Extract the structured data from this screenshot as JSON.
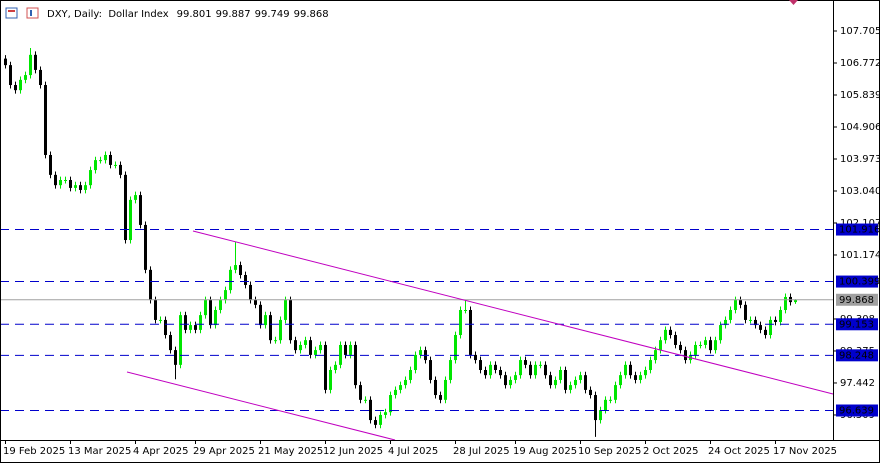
{
  "header": {
    "title": "DXY, Daily:  Dollar Index",
    "open": 99.801,
    "high": 99.887,
    "low": 99.749,
    "close": 99.868
  },
  "chart_data": {
    "type": "candlestick",
    "categories": [
      "19 Feb 2025",
      null,
      null,
      null,
      null,
      null,
      null,
      null,
      null,
      null,
      null,
      null,
      null,
      "13 Mar 2025",
      null,
      null,
      null,
      null,
      null,
      null,
      null,
      null,
      null,
      null,
      null,
      null,
      "4 Apr 2025",
      null,
      null,
      null,
      null,
      null,
      null,
      null,
      null,
      null,
      null,
      null,
      "29 Apr 2025",
      null,
      null,
      null,
      null,
      null,
      null,
      null,
      null,
      null,
      null,
      null,
      null,
      "21 May 2025",
      null,
      null,
      null,
      null,
      null,
      null,
      null,
      null,
      null,
      null,
      null,
      null,
      "12 Jun 2025",
      null,
      null,
      null,
      null,
      null,
      null,
      null,
      null,
      null,
      null,
      null,
      null,
      "4 Jul 2025",
      null,
      null,
      null,
      null,
      null,
      null,
      null,
      null,
      null,
      null,
      null,
      null,
      "28 Jul 2025",
      null,
      null,
      null,
      null,
      null,
      null,
      null,
      null,
      null,
      null,
      null,
      "19 Aug 2025",
      null,
      null,
      null,
      null,
      null,
      null,
      null,
      null,
      null,
      null,
      null,
      null,
      "10 Sep 2025",
      null,
      null,
      null,
      null,
      null,
      null,
      null,
      null,
      null,
      null,
      null,
      null,
      "2 Oct 2025",
      null,
      null,
      null,
      null,
      null,
      null,
      null,
      null,
      null,
      null,
      null,
      null,
      "24 Oct 2025",
      null,
      null,
      null,
      null,
      null,
      null,
      null,
      null,
      null,
      null,
      null,
      null,
      "17 Nov 2025",
      null,
      null,
      null,
      null
    ],
    "open": [
      106.9,
      106.71,
      106.13,
      105.98,
      106.28,
      106.42,
      107.01,
      106.57,
      106.13,
      104.09,
      103.51,
      103.21,
      103.36,
      103.36,
      103.13,
      103.21,
      103.07,
      103.21,
      103.65,
      103.94,
      103.94,
      104.09,
      103.8,
      103.8,
      103.51,
      101.61,
      102.78,
      102.92,
      102.05,
      100.74,
      99.86,
      99.28,
      99.28,
      98.84,
      98.4,
      97.97,
      99.42,
      98.99,
      99.13,
      98.99,
      99.42,
      99.86,
      99.13,
      99.57,
      99.86,
      100.15,
      100.74,
      100.88,
      100.59,
      100.3,
      99.86,
      99.72,
      99.13,
      99.42,
      98.69,
      98.69,
      99.28,
      99.86,
      98.69,
      98.4,
      98.55,
      98.69,
      98.26,
      98.4,
      98.55,
      97.24,
      97.82,
      97.97,
      98.55,
      98.26,
      98.55,
      97.38,
      96.95,
      96.95,
      96.36,
      96.22,
      96.51,
      96.59,
      97.09,
      97.24,
      97.38,
      97.53,
      97.82,
      98.26,
      98.4,
      98.11,
      97.53,
      97.09,
      96.95,
      97.53,
      98.11,
      98.84,
      99.57,
      99.57,
      98.26,
      98.11,
      97.82,
      97.67,
      97.97,
      97.82,
      97.67,
      97.38,
      97.53,
      97.67,
      98.11,
      97.97,
      97.67,
      97.97,
      97.97,
      97.67,
      97.38,
      97.53,
      97.82,
      97.24,
      97.38,
      97.53,
      97.67,
      97.24,
      97.09,
      96.36,
      96.65,
      96.95,
      96.95,
      97.38,
      97.67,
      97.97,
      97.67,
      97.53,
      97.67,
      97.82,
      98.11,
      98.4,
      98.69,
      98.99,
      98.84,
      98.55,
      98.4,
      98.11,
      98.26,
      98.55,
      98.55,
      98.69,
      98.4,
      98.69,
      99.13,
      99.28,
      99.57,
      99.86,
      99.72,
      99.28,
      99.28,
      99.13,
      98.99,
      98.84,
      99.28,
      99.22,
      99.57,
      99.95,
      99.801
    ],
    "high": [
      107.0,
      106.81,
      106.23,
      106.38,
      106.52,
      107.21,
      107.11,
      106.67,
      106.23,
      104.19,
      103.61,
      103.46,
      103.46,
      103.46,
      103.31,
      103.31,
      103.31,
      103.75,
      104.04,
      104.04,
      104.19,
      104.19,
      103.9,
      103.9,
      103.61,
      102.88,
      103.02,
      103.02,
      102.15,
      100.84,
      99.96,
      99.38,
      99.38,
      98.94,
      98.5,
      99.52,
      99.52,
      99.23,
      99.23,
      99.52,
      99.96,
      99.96,
      99.67,
      99.96,
      100.25,
      100.84,
      101.55,
      100.98,
      100.69,
      100.4,
      99.96,
      99.82,
      99.52,
      99.52,
      98.79,
      99.38,
      99.96,
      99.96,
      98.79,
      98.65,
      98.79,
      98.79,
      98.5,
      98.65,
      98.65,
      97.92,
      98.07,
      98.65,
      98.65,
      98.65,
      98.65,
      97.48,
      97.05,
      97.05,
      96.46,
      96.61,
      96.69,
      97.19,
      97.34,
      97.48,
      97.63,
      97.92,
      98.36,
      98.5,
      98.5,
      98.21,
      97.63,
      97.19,
      97.63,
      98.21,
      98.94,
      99.67,
      99.87,
      99.67,
      98.36,
      98.21,
      97.92,
      98.07,
      98.07,
      97.92,
      97.77,
      97.63,
      97.77,
      98.21,
      98.21,
      98.07,
      98.07,
      98.07,
      98.07,
      97.77,
      97.63,
      97.92,
      97.92,
      97.48,
      97.63,
      97.77,
      97.77,
      97.34,
      97.19,
      96.75,
      97.05,
      97.05,
      97.48,
      97.77,
      98.07,
      98.07,
      97.77,
      97.77,
      97.92,
      98.21,
      98.5,
      98.79,
      99.09,
      99.09,
      98.94,
      98.65,
      98.5,
      98.36,
      98.65,
      98.65,
      98.79,
      98.79,
      98.79,
      99.23,
      99.38,
      99.67,
      99.96,
      99.96,
      99.82,
      99.38,
      99.38,
      99.23,
      99.09,
      99.38,
      99.38,
      99.67,
      100.05,
      100.05,
      99.887
    ],
    "low": [
      106.61,
      106.03,
      105.88,
      105.88,
      106.18,
      106.32,
      106.47,
      106.03,
      103.99,
      103.41,
      103.11,
      103.11,
      103.26,
      103.03,
      103.03,
      102.97,
      102.97,
      103.11,
      103.55,
      103.84,
      103.84,
      103.7,
      103.7,
      103.41,
      101.51,
      101.51,
      102.68,
      101.95,
      100.64,
      99.76,
      99.18,
      99.18,
      98.74,
      98.3,
      97.55,
      97.87,
      98.89,
      98.89,
      98.89,
      98.89,
      99.32,
      99.03,
      99.03,
      99.47,
      99.76,
      100.05,
      100.64,
      100.49,
      100.2,
      99.76,
      99.62,
      99.03,
      99.03,
      98.59,
      98.59,
      98.59,
      99.18,
      98.59,
      98.3,
      98.3,
      98.45,
      98.16,
      98.16,
      98.3,
      97.14,
      97.14,
      97.72,
      97.87,
      98.16,
      98.16,
      97.28,
      96.85,
      96.85,
      96.26,
      96.12,
      96.12,
      96.41,
      96.49,
      96.99,
      97.14,
      97.28,
      97.43,
      97.72,
      98.16,
      98.01,
      97.43,
      96.99,
      96.85,
      96.85,
      97.43,
      98.01,
      98.74,
      99.47,
      98.16,
      98.01,
      97.72,
      97.57,
      97.57,
      97.72,
      97.57,
      97.28,
      97.28,
      97.43,
      97.57,
      97.87,
      97.57,
      97.57,
      97.87,
      97.57,
      97.28,
      97.28,
      97.43,
      97.14,
      97.14,
      97.28,
      97.43,
      97.14,
      96.99,
      95.87,
      96.26,
      96.55,
      96.85,
      96.85,
      97.28,
      97.57,
      97.57,
      97.43,
      97.43,
      97.57,
      97.72,
      98.01,
      98.3,
      98.59,
      98.74,
      98.45,
      98.3,
      98.01,
      98.01,
      98.16,
      98.45,
      98.45,
      98.3,
      98.3,
      98.59,
      99.03,
      99.18,
      99.47,
      99.62,
      99.18,
      99.18,
      99.03,
      98.89,
      98.74,
      98.74,
      99.12,
      99.12,
      99.47,
      99.7,
      99.749
    ],
    "close": [
      106.71,
      106.13,
      105.98,
      106.28,
      106.42,
      107.01,
      106.57,
      106.13,
      104.09,
      103.51,
      103.21,
      103.36,
      103.36,
      103.13,
      103.21,
      103.07,
      103.21,
      103.65,
      103.94,
      103.94,
      104.09,
      103.8,
      103.8,
      103.51,
      101.61,
      102.78,
      102.92,
      102.05,
      100.74,
      99.86,
      99.28,
      99.28,
      98.84,
      98.4,
      97.97,
      99.42,
      98.99,
      99.13,
      98.99,
      99.42,
      99.86,
      99.13,
      99.57,
      99.86,
      100.15,
      100.74,
      100.88,
      100.59,
      100.3,
      99.86,
      99.72,
      99.13,
      99.42,
      98.69,
      98.69,
      99.28,
      99.86,
      98.69,
      98.4,
      98.55,
      98.69,
      98.26,
      98.4,
      98.55,
      97.24,
      97.82,
      97.97,
      98.55,
      98.26,
      98.55,
      97.38,
      96.95,
      96.95,
      96.36,
      96.22,
      96.51,
      96.59,
      97.09,
      97.24,
      97.38,
      97.53,
      97.82,
      98.26,
      98.4,
      98.11,
      97.53,
      97.09,
      96.95,
      97.53,
      98.11,
      98.84,
      99.57,
      99.57,
      98.26,
      98.11,
      97.82,
      97.67,
      97.97,
      97.82,
      97.67,
      97.38,
      97.53,
      97.67,
      98.11,
      97.97,
      97.67,
      97.97,
      97.97,
      97.67,
      97.38,
      97.53,
      97.82,
      97.24,
      97.38,
      97.53,
      97.67,
      97.24,
      97.09,
      96.36,
      96.65,
      96.95,
      96.95,
      97.38,
      97.67,
      97.97,
      97.67,
      97.53,
      97.67,
      97.82,
      98.11,
      98.4,
      98.69,
      98.99,
      98.84,
      98.55,
      98.4,
      98.11,
      98.26,
      98.55,
      98.55,
      98.69,
      98.4,
      98.69,
      99.13,
      99.28,
      99.57,
      99.86,
      99.72,
      99.28,
      99.28,
      99.13,
      98.99,
      98.84,
      99.28,
      99.22,
      99.57,
      99.95,
      99.8,
      99.868
    ],
    "ylim": [
      95.779,
      108.609
    ],
    "yticks": [
      107.705,
      106.772,
      105.839,
      104.906,
      103.973,
      {
        "value": 103.04,
        "label": "103.040"
      },
      102.107,
      101.174,
      99.308,
      98.375,
      97.442,
      96.509
    ],
    "up_color": "#00e600",
    "down_color": "#000000",
    "levels": [
      101.916,
      100.399,
      99.153,
      98.248,
      96.639
    ],
    "level_color": "#0000cc",
    "last_price_color": "#a0a0a0"
  }
}
